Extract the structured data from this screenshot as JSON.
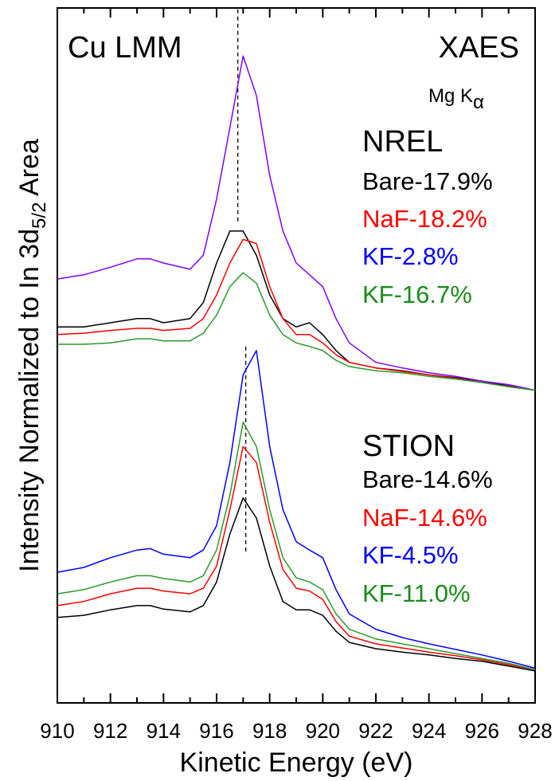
{
  "chart_data": {
    "type": "line",
    "xlabel": "Kinetic Energy (eV)",
    "ylabel_parts": [
      "Intensity Normalized to In 3d",
      "5/2",
      " Area"
    ],
    "annotations": {
      "left": "Cu LMM",
      "right": "XAES",
      "source_parts": [
        "Mg K",
        "α"
      ]
    },
    "xlim": [
      910,
      928
    ],
    "xticks": [
      910,
      912,
      914,
      916,
      918,
      920,
      922,
      924,
      926,
      928
    ],
    "xminorticks": [
      911,
      913,
      915,
      917,
      919,
      921,
      923,
      925,
      927
    ],
    "ylim": [
      0,
      100
    ],
    "reference_lines": [
      {
        "x": 916.8,
        "y": [
          69.3,
          100
        ]
      },
      {
        "x": 917.1,
        "y": [
          21.8,
          51.6
        ]
      }
    ],
    "x": [
      910,
      911,
      912,
      913,
      913.5,
      914,
      915,
      915.5,
      916,
      916.5,
      917,
      917.5,
      918,
      918.5,
      919,
      919.5,
      920,
      920.5,
      921,
      922,
      923,
      924,
      925,
      926,
      927,
      928
    ],
    "groups": [
      {
        "title": "NREL",
        "series": [
          {
            "name": "Bare-17.9%",
            "color": "#000000",
            "legend_color": "#000000",
            "values": [
              54.1,
              54.1,
              54.7,
              55.3,
              55.3,
              54.7,
              55.3,
              57.6,
              63.3,
              67.9,
              67.9,
              64.4,
              58.7,
              55.3,
              54.1,
              54.7,
              53.0,
              50.7,
              49.0,
              48.2,
              47.8,
              47.2,
              46.8,
              46.3,
              45.6,
              45.0
            ]
          },
          {
            "name": "NaF-18.2%",
            "color": "#ff0000",
            "legend_color": "#ff0000",
            "values": [
              53.0,
              53.2,
              53.6,
              53.9,
              53.9,
              53.6,
              53.9,
              55.3,
              58.7,
              63.3,
              66.7,
              66.1,
              59.9,
              55.3,
              53.0,
              53.0,
              51.8,
              50.1,
              49.0,
              48.2,
              47.7,
              47.2,
              46.7,
              46.1,
              45.5,
              45.0
            ]
          },
          {
            "name": "KF-2.8%",
            "color": "#8000ff",
            "legend_color": "#0000ff",
            "values": [
              61.0,
              61.6,
              62.7,
              63.9,
              63.9,
              63.3,
              62.4,
              64.4,
              72.5,
              82.8,
              93.1,
              87.4,
              75.9,
              67.9,
              63.3,
              61.6,
              59.9,
              55.3,
              51.8,
              49.0,
              48.2,
              47.5,
              47.0,
              46.3,
              45.8,
              45.0
            ]
          },
          {
            "name": "KF-16.7%",
            "color": "#2a9a2a",
            "legend_color": "#1a8c1a",
            "values": [
              51.6,
              51.6,
              51.8,
              52.4,
              52.4,
              52.1,
              52.1,
              53.2,
              55.8,
              59.9,
              61.9,
              60.4,
              55.8,
              53.0,
              51.8,
              51.3,
              50.7,
              49.3,
              48.4,
              47.8,
              47.5,
              47.0,
              46.6,
              46.1,
              45.5,
              45.0
            ]
          }
        ]
      },
      {
        "title": "STION",
        "series": [
          {
            "name": "Bare-14.6%",
            "color": "#000000",
            "legend_color": "#000000",
            "values": [
              12.3,
              12.6,
              13.4,
              14.0,
              14.0,
              13.5,
              13.1,
              14.0,
              17.4,
              24.3,
              29.5,
              26.6,
              19.7,
              14.6,
              13.4,
              13.4,
              12.6,
              10.3,
              8.7,
              7.8,
              7.3,
              6.9,
              6.4,
              6.0,
              5.3,
              4.6
            ]
          },
          {
            "name": "NaF-14.6%",
            "color": "#ff0000",
            "legend_color": "#ff0000",
            "values": [
              14.0,
              14.6,
              15.7,
              16.5,
              16.5,
              16.1,
              15.7,
              16.5,
              19.7,
              27.8,
              36.9,
              34.6,
              26.0,
              19.2,
              16.5,
              16.1,
              14.9,
              11.7,
              9.6,
              8.5,
              7.9,
              7.3,
              6.8,
              6.2,
              5.5,
              4.8
            ]
          },
          {
            "name": "KF-4.5%",
            "color": "#0000ff",
            "legend_color": "#0000ff",
            "values": [
              18.8,
              19.5,
              20.9,
              22.0,
              22.2,
              21.4,
              20.9,
              22.0,
              25.5,
              34.6,
              47.2,
              50.7,
              36.9,
              27.8,
              23.2,
              22.0,
              20.9,
              16.3,
              12.8,
              10.6,
              9.4,
              8.5,
              7.7,
              6.9,
              6.0,
              5.0
            ]
          },
          {
            "name": "KF-11.0%",
            "color": "#2a9a2a",
            "legend_color": "#1a8c1a",
            "values": [
              15.7,
              16.3,
              17.4,
              18.3,
              18.3,
              17.9,
              17.4,
              18.3,
              22.0,
              29.9,
              40.4,
              36.9,
              27.8,
              20.9,
              18.0,
              17.4,
              16.3,
              12.8,
              10.6,
              9.2,
              8.5,
              7.8,
              7.1,
              6.4,
              5.7,
              4.8
            ]
          }
        ]
      }
    ]
  }
}
